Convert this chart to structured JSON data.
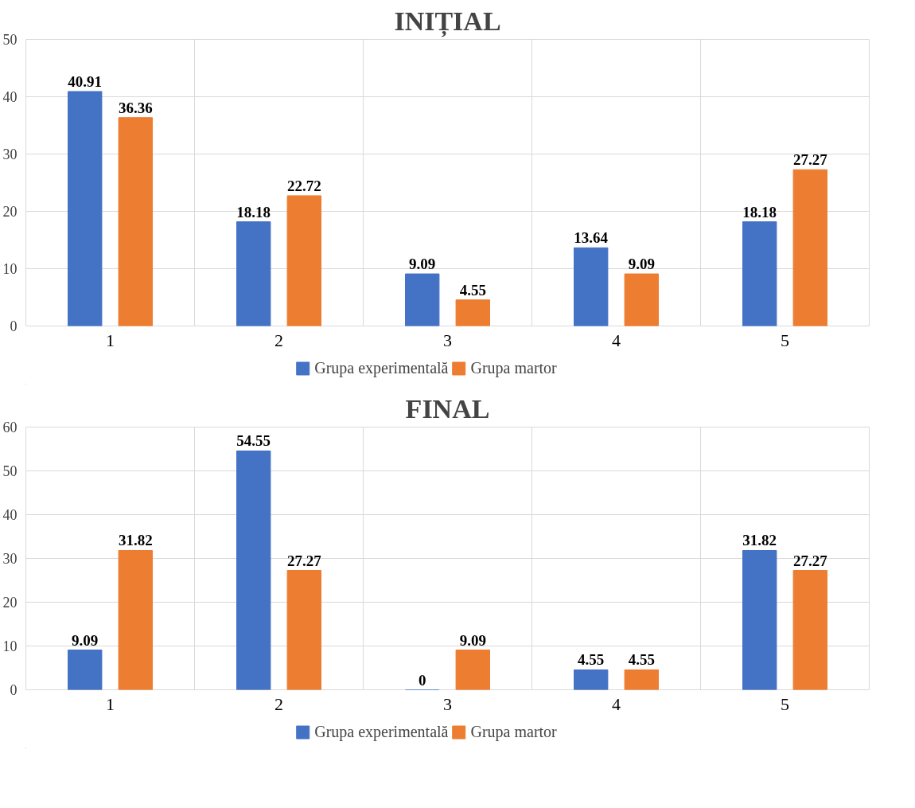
{
  "chart_data": [
    {
      "type": "bar",
      "title": "INIȚIAL",
      "categories": [
        "1",
        "2",
        "3",
        "4",
        "5"
      ],
      "series": [
        {
          "name": "Grupa experimentală",
          "color": "#4472c4",
          "values": [
            40.91,
            18.18,
            9.09,
            13.64,
            18.18
          ]
        },
        {
          "name": "Grupa martor",
          "color": "#ed7d31",
          "values": [
            36.36,
            22.72,
            4.55,
            9.09,
            27.27
          ]
        }
      ],
      "ylim": [
        0,
        50
      ],
      "yticks": [
        0,
        10,
        20,
        30,
        40,
        50
      ],
      "grid": true,
      "legend": "bottom",
      "data_labels": true
    },
    {
      "type": "bar",
      "title": "FINAL",
      "categories": [
        "1",
        "2",
        "3",
        "4",
        "5"
      ],
      "series": [
        {
          "name": "Grupa experimentală",
          "color": "#4472c4",
          "values": [
            9.09,
            54.55,
            0,
            4.55,
            31.82
          ]
        },
        {
          "name": "Grupa martor",
          "color": "#ed7d31",
          "values": [
            31.82,
            27.27,
            9.09,
            4.55,
            27.27
          ]
        }
      ],
      "ylim": [
        0,
        60
      ],
      "yticks": [
        0,
        10,
        20,
        30,
        40,
        50,
        60
      ],
      "grid": true,
      "legend": "bottom",
      "data_labels": true
    }
  ]
}
